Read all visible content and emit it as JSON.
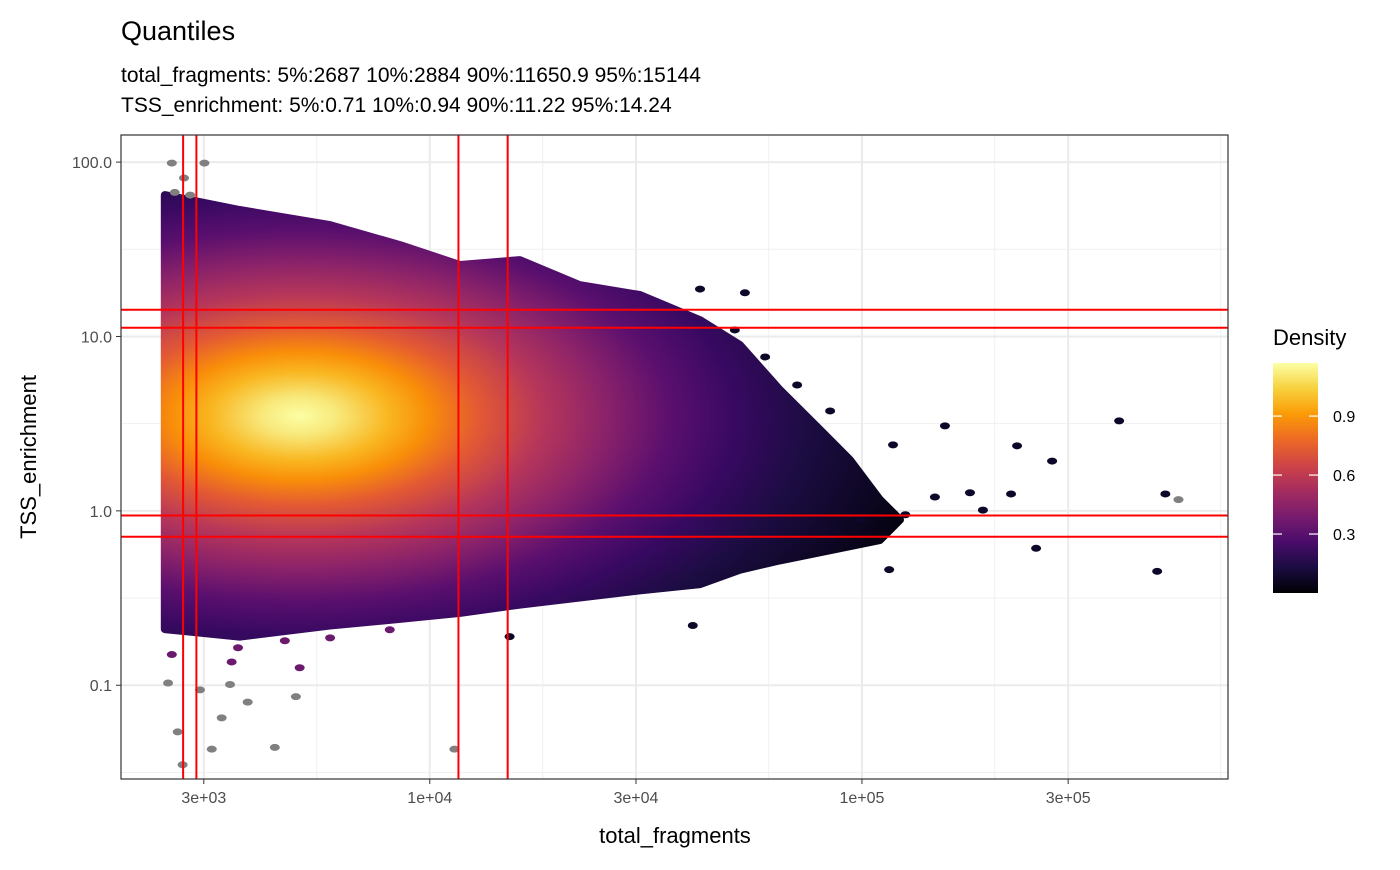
{
  "chart_data": {
    "type": "scatter",
    "title": "Quantiles",
    "subtitle_lines": [
      "total_fragments: 5%:2687 10%:2884 90%:11650.9 95%:15144",
      "TSS_enrichment: 5%:0.71 10%:0.94 90%:11.22 95%:14.24"
    ],
    "xlabel": "total_fragments",
    "ylabel": "TSS_enrichment",
    "x_scale": "log10",
    "y_scale": "log10",
    "xlim": [
      1930,
      703000
    ],
    "ylim": [
      0.029,
      143
    ],
    "x_ticks": [
      {
        "value": 3000,
        "label": "3e+03"
      },
      {
        "value": 10000,
        "label": "1e+04"
      },
      {
        "value": 30000,
        "label": "3e+04"
      },
      {
        "value": 100000,
        "label": "1e+05"
      },
      {
        "value": 300000,
        "label": "3e+05"
      }
    ],
    "y_ticks": [
      {
        "value": 0.1,
        "label": "0.1"
      },
      {
        "value": 1,
        "label": "1.0"
      },
      {
        "value": 10,
        "label": "10.0"
      },
      {
        "value": 100,
        "label": "100.0"
      }
    ],
    "grid": true,
    "quantile_lines": {
      "color": "#ff0000",
      "total_fragments": [
        2687,
        2884,
        11650.9,
        15144
      ],
      "TSS_enrichment": [
        0.71,
        0.94,
        11.22,
        14.24
      ]
    },
    "density_peak": {
      "total_fragments": 5000,
      "TSS_enrichment": 3.5,
      "density": 1.15
    },
    "dense_region_envelope": [
      [
        2437,
        64.7
      ],
      [
        3630,
        53.1
      ],
      [
        5875,
        43.5
      ],
      [
        8530,
        33.4
      ],
      [
        11750,
        25.7
      ],
      [
        16150,
        27.4
      ],
      [
        22200,
        19.7
      ],
      [
        30600,
        17.3
      ],
      [
        42200,
        12.4
      ],
      [
        52200,
        8.93
      ],
      [
        64600,
        4.93
      ],
      [
        80000,
        2.91
      ],
      [
        93800,
        1.96
      ],
      [
        110000,
        1.16
      ],
      [
        122500,
        0.89
      ],
      [
        110000,
        0.68
      ],
      [
        64600,
        0.52
      ],
      [
        52200,
        0.46
      ],
      [
        42200,
        0.38
      ],
      [
        30600,
        0.35
      ],
      [
        16150,
        0.29
      ],
      [
        11750,
        0.26
      ],
      [
        8530,
        0.24
      ],
      [
        5875,
        0.22
      ],
      [
        3630,
        0.19
      ],
      [
        2437,
        0.21
      ]
    ],
    "outlier_points": [
      {
        "x": 2530,
        "y": 98.7,
        "group": "out"
      },
      {
        "x": 3010,
        "y": 98.7,
        "group": "out"
      },
      {
        "x": 2700,
        "y": 81,
        "group": "out"
      },
      {
        "x": 2570,
        "y": 67,
        "group": "out"
      },
      {
        "x": 2790,
        "y": 64.7,
        "group": "out"
      },
      {
        "x": 2480,
        "y": 0.103,
        "group": "out"
      },
      {
        "x": 2940,
        "y": 0.094,
        "group": "out"
      },
      {
        "x": 3450,
        "y": 0.101,
        "group": "out"
      },
      {
        "x": 3790,
        "y": 0.08,
        "group": "out"
      },
      {
        "x": 4900,
        "y": 0.086,
        "group": "out"
      },
      {
        "x": 2610,
        "y": 0.054,
        "group": "out"
      },
      {
        "x": 3300,
        "y": 0.065,
        "group": "out"
      },
      {
        "x": 4380,
        "y": 0.044,
        "group": "out"
      },
      {
        "x": 11400,
        "y": 0.043,
        "group": "out"
      },
      {
        "x": 2680,
        "y": 0.035,
        "group": "out"
      },
      {
        "x": 3130,
        "y": 0.043,
        "group": "out"
      },
      {
        "x": 540000,
        "y": 1.16,
        "group": "out"
      },
      {
        "x": 5000,
        "y": 0.126,
        "group": "low"
      },
      {
        "x": 4620,
        "y": 0.18,
        "group": "low"
      },
      {
        "x": 3480,
        "y": 0.136,
        "group": "low"
      },
      {
        "x": 2530,
        "y": 0.15,
        "group": "low"
      },
      {
        "x": 3600,
        "y": 0.164,
        "group": "low"
      },
      {
        "x": 5880,
        "y": 0.187,
        "group": "low"
      },
      {
        "x": 8080,
        "y": 0.208,
        "group": "low"
      },
      {
        "x": 42200,
        "y": 18.7,
        "group": "sparse"
      },
      {
        "x": 53600,
        "y": 17.8,
        "group": "sparse"
      },
      {
        "x": 50800,
        "y": 10.9,
        "group": "sparse"
      },
      {
        "x": 59700,
        "y": 7.63,
        "group": "sparse"
      },
      {
        "x": 70800,
        "y": 5.27,
        "group": "sparse"
      },
      {
        "x": 84400,
        "y": 3.74,
        "group": "sparse"
      },
      {
        "x": 118000,
        "y": 2.39,
        "group": "sparse"
      },
      {
        "x": 155600,
        "y": 3.07,
        "group": "sparse"
      },
      {
        "x": 228500,
        "y": 2.36,
        "group": "sparse"
      },
      {
        "x": 275400,
        "y": 1.93,
        "group": "sparse"
      },
      {
        "x": 393600,
        "y": 3.28,
        "group": "sparse"
      },
      {
        "x": 503500,
        "y": 1.25,
        "group": "sparse"
      },
      {
        "x": 482000,
        "y": 0.45,
        "group": "sparse"
      },
      {
        "x": 252900,
        "y": 0.61,
        "group": "sparse"
      },
      {
        "x": 221300,
        "y": 1.25,
        "group": "sparse"
      },
      {
        "x": 190500,
        "y": 1.01,
        "group": "sparse"
      },
      {
        "x": 115600,
        "y": 0.46,
        "group": "sparse"
      },
      {
        "x": 40600,
        "y": 0.22,
        "group": "sparse"
      },
      {
        "x": 15300,
        "y": 0.19,
        "group": "sparse"
      },
      {
        "x": 147500,
        "y": 1.2,
        "group": "sparse"
      },
      {
        "x": 177800,
        "y": 1.27,
        "group": "sparse"
      },
      {
        "x": 126000,
        "y": 0.95,
        "group": "sparse"
      },
      {
        "x": 99500,
        "y": 0.89,
        "group": "sparse"
      }
    ],
    "group_colors": {
      "out": "#808080",
      "low": "#6b1a6e",
      "sparse": "#0d0829"
    },
    "legend": {
      "title": "Density",
      "placement": "right",
      "range": [
        0,
        1.17
      ],
      "ticks": [
        {
          "value": 0.3,
          "label": "0.3"
        },
        {
          "value": 0.6,
          "label": "0.6"
        },
        {
          "value": 0.9,
          "label": "0.9"
        }
      ],
      "palette": [
        "#000004",
        "#1b0c41",
        "#4a0c6b",
        "#781c6d",
        "#a52c60",
        "#cf4446",
        "#ed6925",
        "#fb9b06",
        "#f7d13d",
        "#fcffa4"
      ]
    }
  }
}
